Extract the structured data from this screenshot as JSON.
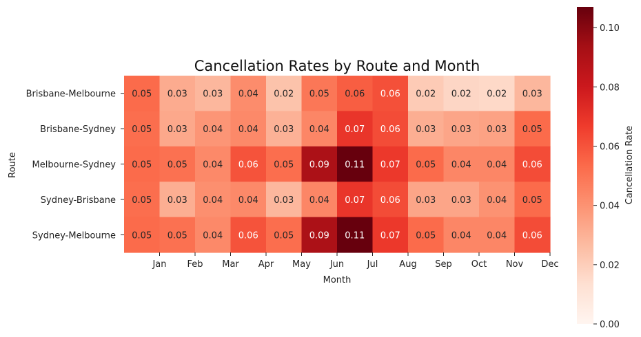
{
  "chart_data": {
    "type": "heatmap",
    "title": "Cancellation Rates by Route and Month",
    "xlabel": "Month",
    "ylabel": "Route",
    "x_tick_labels": [
      "Jan",
      "Feb",
      "Mar",
      "Apr",
      "May",
      "Jun",
      "Jul",
      "Aug",
      "Sep",
      "Oct",
      "Nov",
      "Dec"
    ],
    "rows": [
      "Brisbane-Melbourne",
      "Brisbane-Sydney",
      "Melbourne-Sydney",
      "Sydney-Brisbane",
      "Sydney-Melbourne"
    ],
    "values": [
      [
        0.05,
        0.03,
        0.03,
        0.04,
        0.02,
        0.05,
        0.06,
        0.06,
        0.02,
        0.02,
        0.02,
        0.03
      ],
      [
        0.05,
        0.03,
        0.04,
        0.04,
        0.03,
        0.04,
        0.07,
        0.06,
        0.03,
        0.03,
        0.03,
        0.05
      ],
      [
        0.05,
        0.05,
        0.04,
        0.06,
        0.05,
        0.09,
        0.11,
        0.07,
        0.05,
        0.04,
        0.04,
        0.06
      ],
      [
        0.05,
        0.03,
        0.04,
        0.04,
        0.03,
        0.04,
        0.07,
        0.06,
        0.03,
        0.03,
        0.04,
        0.05
      ],
      [
        0.05,
        0.05,
        0.04,
        0.06,
        0.05,
        0.09,
        0.11,
        0.07,
        0.05,
        0.04,
        0.04,
        0.06
      ]
    ],
    "shading_values": [
      [
        0.053,
        0.032,
        0.028,
        0.042,
        0.024,
        0.049,
        0.057,
        0.061,
        0.021,
        0.017,
        0.016,
        0.028
      ],
      [
        0.052,
        0.033,
        0.039,
        0.043,
        0.03,
        0.044,
        0.069,
        0.062,
        0.031,
        0.034,
        0.035,
        0.053
      ],
      [
        0.053,
        0.051,
        0.043,
        0.06,
        0.052,
        0.091,
        0.107,
        0.068,
        0.053,
        0.044,
        0.044,
        0.062
      ],
      [
        0.052,
        0.031,
        0.041,
        0.043,
        0.028,
        0.044,
        0.069,
        0.062,
        0.034,
        0.034,
        0.04,
        0.053
      ],
      [
        0.053,
        0.051,
        0.043,
        0.06,
        0.052,
        0.091,
        0.107,
        0.068,
        0.053,
        0.044,
        0.044,
        0.062
      ]
    ],
    "colorbar": {
      "label": "Cancellation Rate",
      "range": [
        0.0,
        0.107
      ],
      "ticks": [
        0.0,
        0.02,
        0.04,
        0.06,
        0.08,
        0.1
      ],
      "tick_labels": [
        "0.00",
        "0.02",
        "0.04",
        "0.06",
        "0.08",
        "0.10"
      ],
      "colormap": "Reds",
      "stops": [
        "#fff5f0",
        "#fee0d2",
        "#fcbba1",
        "#fc9272",
        "#fb6a4a",
        "#ef3b2c",
        "#cb181d",
        "#a50f15",
        "#67000d"
      ]
    },
    "grid": false,
    "legend": "colorbar-right"
  }
}
